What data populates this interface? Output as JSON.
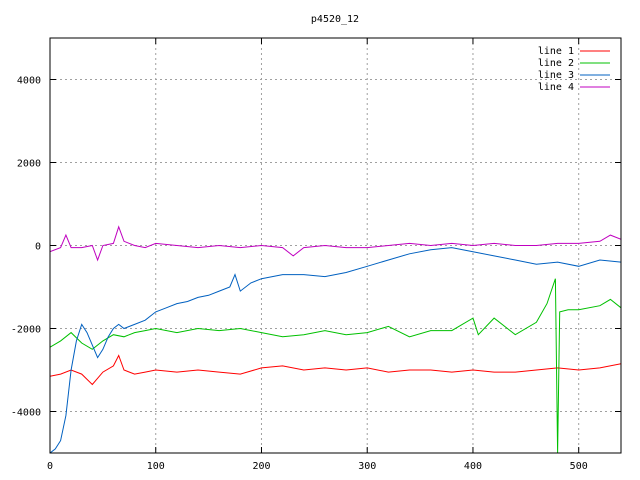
{
  "chart_data": {
    "type": "line",
    "title": "p4520_12",
    "xlabel": "",
    "ylabel": "",
    "xlim": [
      0,
      540
    ],
    "ylim": [
      -5000,
      5000
    ],
    "x_ticks": [
      0,
      100,
      200,
      300,
      400,
      500
    ],
    "y_ticks": [
      -4000,
      -2000,
      0,
      2000,
      4000
    ],
    "grid": true,
    "legend_position": "top-right",
    "series": [
      {
        "name": "line 1",
        "color": "#ff0000",
        "x": [
          0,
          10,
          20,
          30,
          40,
          50,
          60,
          65,
          70,
          80,
          90,
          100,
          120,
          140,
          160,
          180,
          200,
          220,
          240,
          260,
          280,
          300,
          320,
          340,
          360,
          380,
          400,
          420,
          440,
          460,
          480,
          500,
          520,
          540
        ],
        "y": [
          -3150,
          -3100,
          -3000,
          -3100,
          -3350,
          -3050,
          -2900,
          -2650,
          -3000,
          -3100,
          -3050,
          -3000,
          -3050,
          -3000,
          -3050,
          -3100,
          -2950,
          -2900,
          -3000,
          -2950,
          -3000,
          -2950,
          -3050,
          -3000,
          -3000,
          -3050,
          -3000,
          -3050,
          -3050,
          -3000,
          -2950,
          -3000,
          -2950,
          -2850
        ]
      },
      {
        "name": "line 2",
        "color": "#00c000",
        "x": [
          0,
          10,
          20,
          30,
          40,
          50,
          60,
          70,
          80,
          90,
          100,
          120,
          140,
          160,
          180,
          200,
          220,
          240,
          260,
          280,
          300,
          320,
          340,
          360,
          380,
          400,
          405,
          420,
          440,
          460,
          470,
          478,
          480,
          482,
          490,
          500,
          520,
          530,
          540
        ],
        "y": [
          -2450,
          -2300,
          -2100,
          -2350,
          -2500,
          -2300,
          -2150,
          -2200,
          -2100,
          -2050,
          -2000,
          -2100,
          -2000,
          -2050,
          -2000,
          -2100,
          -2200,
          -2150,
          -2050,
          -2150,
          -2100,
          -1950,
          -2200,
          -2050,
          -2050,
          -1750,
          -2150,
          -1750,
          -2150,
          -1850,
          -1400,
          -800,
          -5000,
          -1600,
          -1550,
          -1550,
          -1450,
          -1300,
          -1500
        ]
      },
      {
        "name": "line 3",
        "color": "#0060c0",
        "x": [
          0,
          5,
          10,
          15,
          20,
          25,
          30,
          35,
          40,
          45,
          50,
          55,
          60,
          65,
          70,
          80,
          90,
          100,
          110,
          120,
          130,
          140,
          150,
          160,
          170,
          175,
          180,
          190,
          200,
          220,
          240,
          260,
          280,
          300,
          320,
          340,
          360,
          380,
          400,
          420,
          440,
          460,
          480,
          500,
          520,
          540
        ],
        "y": [
          -5000,
          -4900,
          -4700,
          -4100,
          -3000,
          -2300,
          -1900,
          -2100,
          -2400,
          -2700,
          -2500,
          -2200,
          -2000,
          -1900,
          -2000,
          -1900,
          -1800,
          -1600,
          -1500,
          -1400,
          -1350,
          -1250,
          -1200,
          -1100,
          -1000,
          -700,
          -1100,
          -900,
          -800,
          -700,
          -700,
          -750,
          -650,
          -500,
          -350,
          -200,
          -100,
          -50,
          -150,
          -250,
          -350,
          -450,
          -400,
          -500,
          -350,
          -400
        ]
      },
      {
        "name": "line 4",
        "color": "#c000c0",
        "x": [
          0,
          10,
          15,
          20,
          30,
          40,
          45,
          50,
          60,
          65,
          70,
          80,
          90,
          100,
          120,
          140,
          160,
          180,
          200,
          220,
          230,
          240,
          260,
          280,
          300,
          320,
          340,
          360,
          380,
          400,
          420,
          440,
          460,
          480,
          500,
          520,
          530,
          540
        ],
        "y": [
          -150,
          -50,
          250,
          -50,
          -50,
          0,
          -350,
          0,
          50,
          450,
          100,
          0,
          -50,
          50,
          0,
          -50,
          0,
          -50,
          0,
          -50,
          -250,
          -50,
          0,
          -50,
          -50,
          0,
          50,
          0,
          50,
          0,
          50,
          0,
          0,
          50,
          50,
          100,
          250,
          150
        ]
      }
    ]
  }
}
